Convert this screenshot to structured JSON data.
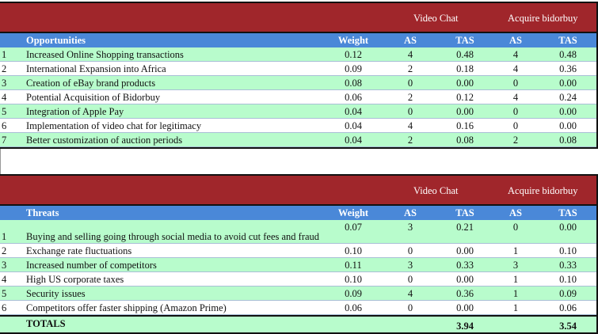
{
  "strategy_headers": [
    "Video Chat",
    "Acquire bidorbuy"
  ],
  "columns": {
    "weight": "Weight",
    "as": "AS",
    "tas": "TAS"
  },
  "colors": {
    "header_red": "#a0262b",
    "header_blue": "#4a88d8",
    "row_green": "#b8fccc"
  },
  "opportunities": {
    "title": "Opportunities",
    "rows": [
      {
        "n": "1",
        "name": "Increased Online Shopping transactions",
        "w": "0.12",
        "as1": "4",
        "tas1": "0.48",
        "as2": "4",
        "tas2": "0.48"
      },
      {
        "n": "2",
        "name": "International Expansion into Africa",
        "w": "0.09",
        "as1": "2",
        "tas1": "0.18",
        "as2": "4",
        "tas2": "0.36"
      },
      {
        "n": "3",
        "name": "Creation of eBay brand products",
        "w": "0.08",
        "as1": "0",
        "tas1": "0.00",
        "as2": "0",
        "tas2": "0.00"
      },
      {
        "n": "4",
        "name": "Potential Acquisition of Bidorbuy",
        "w": "0.06",
        "as1": "2",
        "tas1": "0.12",
        "as2": "4",
        "tas2": "0.24"
      },
      {
        "n": "5",
        "name": "Integration of Apple Pay",
        "w": "0.04",
        "as1": "0",
        "tas1": "0.00",
        "as2": "0",
        "tas2": "0.00"
      },
      {
        "n": "6",
        "name": "Implementation of video chat for legitimacy",
        "w": "0.04",
        "as1": "4",
        "tas1": "0.16",
        "as2": "0",
        "tas2": "0.00"
      },
      {
        "n": "7",
        "name": "Better customization of auction periods",
        "w": "0.04",
        "as1": "2",
        "tas1": "0.08",
        "as2": "2",
        "tas2": "0.08"
      }
    ]
  },
  "threats": {
    "title": "Threats",
    "rows": [
      {
        "n": "1",
        "name": "Buying and selling going through social media to avoid cut fees and fraud",
        "w": "0.07",
        "as1": "3",
        "tas1": "0.21",
        "as2": "0",
        "tas2": "0.00"
      },
      {
        "n": "2",
        "name": "Exchange rate fluctuations",
        "w": "0.10",
        "as1": "0",
        "tas1": "0.00",
        "as2": "1",
        "tas2": "0.10"
      },
      {
        "n": "3",
        "name": "Increased number of competitors",
        "w": "0.11",
        "as1": "3",
        "tas1": "0.33",
        "as2": "3",
        "tas2": "0.33"
      },
      {
        "n": "4",
        "name": "High US corporate taxes",
        "w": "0.10",
        "as1": "0",
        "tas1": "0.00",
        "as2": "1",
        "tas2": "0.10"
      },
      {
        "n": "5",
        "name": "Security issues",
        "w": "0.09",
        "as1": "4",
        "tas1": "0.36",
        "as2": "1",
        "tas2": "0.09"
      },
      {
        "n": "6",
        "name": "Competitors offer faster shipping (Amazon Prime)",
        "w": "0.06",
        "as1": "0",
        "tas1": "0.00",
        "as2": "1",
        "tas2": "0.06"
      }
    ]
  },
  "totals": {
    "label": "TOTALS",
    "tas1": "3.94",
    "tas2": "3.54"
  }
}
